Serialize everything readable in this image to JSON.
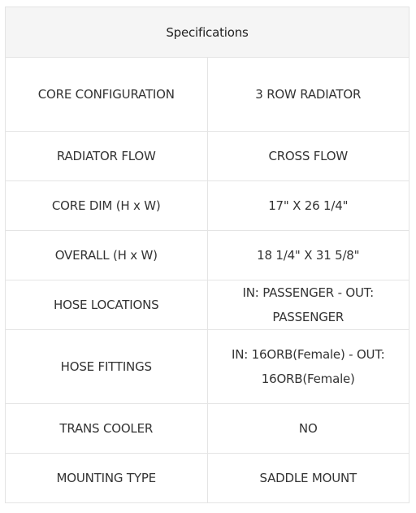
{
  "table": {
    "header": "Specifications",
    "rows": [
      {
        "label": "CORE CONFIGURATION",
        "value": "3 ROW RADIATOR"
      },
      {
        "label": "RADIATOR FLOW",
        "value": "CROSS FLOW"
      },
      {
        "label": "CORE DIM (H x W)",
        "value": "17\" X 26 1/4\""
      },
      {
        "label": "OVERALL (H x W)",
        "value": "18 1/4\" X 31 5/8\""
      },
      {
        "label": "HOSE LOCATIONS",
        "value": "IN: PASSENGER - OUT: PASSENGER"
      },
      {
        "label": "HOSE FITTINGS",
        "value": "IN: 16ORB(Female) - OUT: 16ORB(Female)"
      },
      {
        "label": "TRANS COOLER",
        "value": "NO"
      },
      {
        "label": "MOUNTING TYPE",
        "value": "SADDLE MOUNT"
      }
    ]
  }
}
